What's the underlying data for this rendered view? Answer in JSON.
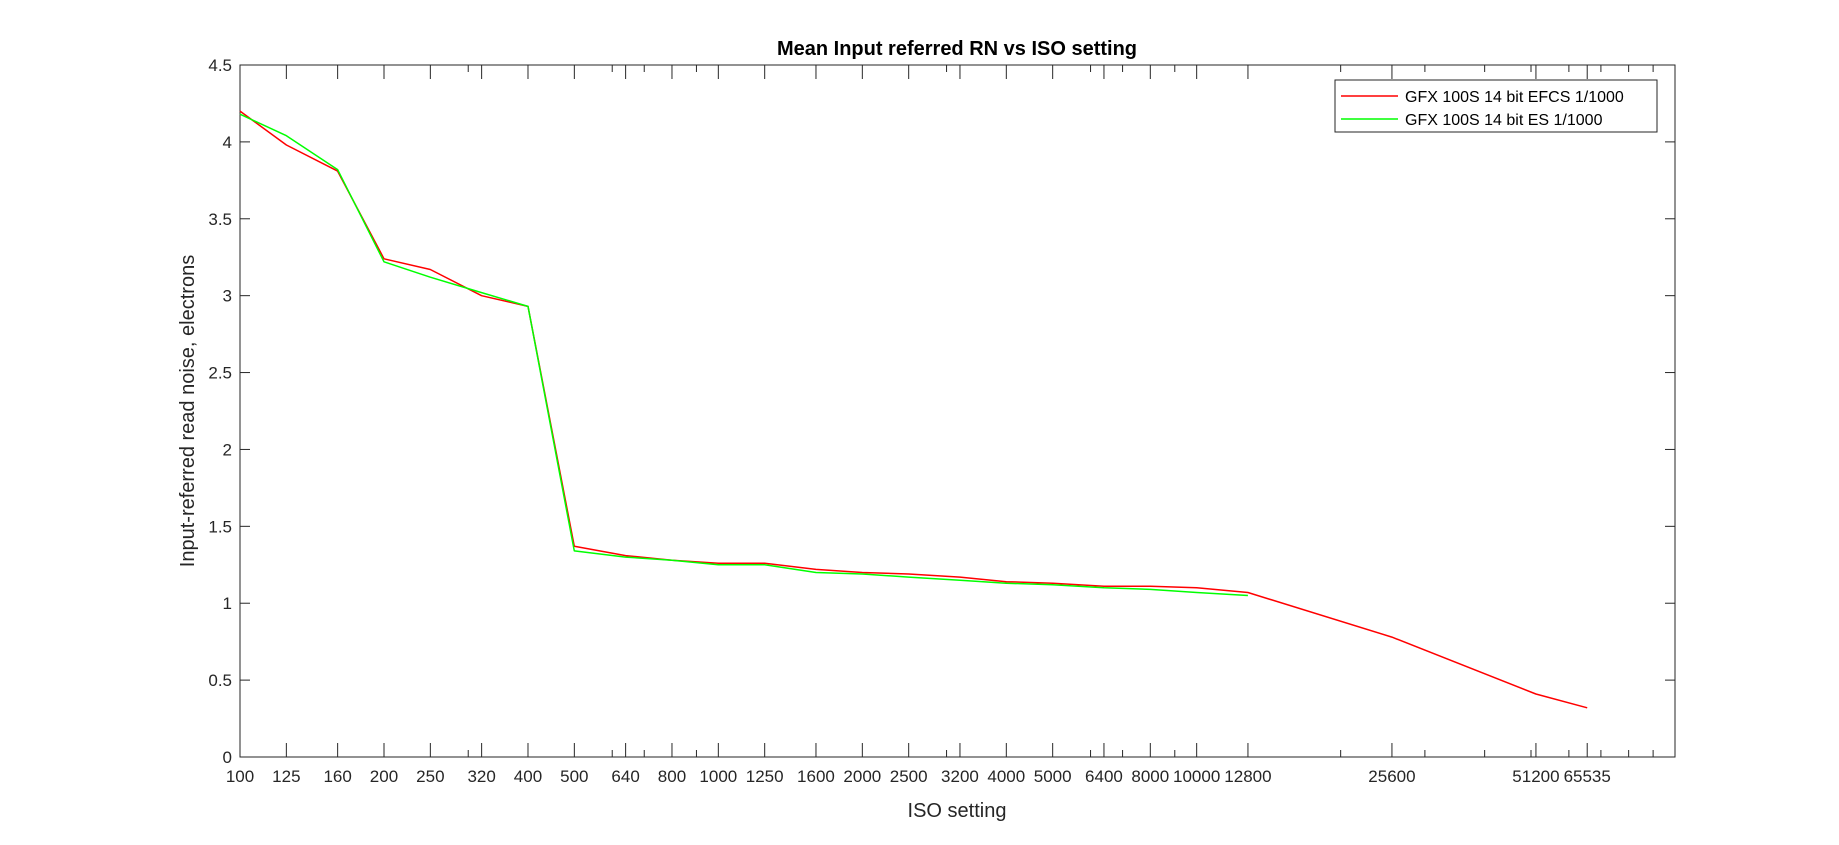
{
  "chart_data": {
    "type": "line",
    "title": "Mean Input referred RN vs ISO setting",
    "xlabel": "ISO setting",
    "ylabel": "Input-referred read noise, electrons",
    "xscale": "log",
    "xlim": [
      100,
      100000
    ],
    "ylim": [
      0,
      4.5
    ],
    "yticks": [
      0,
      0.5,
      1,
      1.5,
      2,
      2.5,
      3,
      3.5,
      4,
      4.5
    ],
    "ytick_labels": [
      "0",
      "0.5",
      "1",
      "1.5",
      "2",
      "2.5",
      "3",
      "3.5",
      "4",
      "4.5"
    ],
    "xticks": [
      100,
      125,
      160,
      200,
      250,
      320,
      400,
      500,
      640,
      800,
      1000,
      1250,
      1600,
      2000,
      2500,
      3200,
      4000,
      5000,
      6400,
      8000,
      10000,
      12800,
      25600,
      51200,
      65535
    ],
    "xtick_labels": [
      "100",
      "125",
      "160",
      "200",
      "250",
      "320",
      "400",
      "500",
      "640",
      "800",
      "1000",
      "1250",
      "1600",
      "2000",
      "2500",
      "3200",
      "4000",
      "5000",
      "6400",
      "8000",
      "10000",
      "12800",
      "25600",
      "51200",
      "65535"
    ],
    "grid": false,
    "legend_position": "top-right",
    "series": [
      {
        "name": "GFX 100S 14 bit EFCS 1/1000",
        "color": "#ff0000",
        "x": [
          100,
          125,
          160,
          200,
          250,
          320,
          400,
          500,
          640,
          800,
          1000,
          1250,
          1600,
          2000,
          2500,
          3200,
          4000,
          5000,
          6400,
          8000,
          10000,
          12800,
          25600,
          51200,
          65535
        ],
        "y": [
          4.2,
          3.98,
          3.81,
          3.24,
          3.17,
          3.0,
          2.93,
          1.37,
          1.31,
          1.28,
          1.26,
          1.26,
          1.22,
          1.2,
          1.19,
          1.17,
          1.14,
          1.13,
          1.11,
          1.11,
          1.1,
          1.07,
          0.78,
          0.41,
          0.32
        ]
      },
      {
        "name": "GFX 100S 14 bit ES 1/1000",
        "color": "#00ff00",
        "x": [
          100,
          125,
          160,
          200,
          250,
          320,
          400,
          500,
          640,
          800,
          1000,
          1250,
          1600,
          2000,
          2500,
          3200,
          4000,
          5000,
          6400,
          8000,
          10000,
          12800
        ],
        "y": [
          4.18,
          4.04,
          3.82,
          3.22,
          3.12,
          3.02,
          2.93,
          1.34,
          1.3,
          1.28,
          1.25,
          1.25,
          1.2,
          1.19,
          1.17,
          1.15,
          1.13,
          1.12,
          1.1,
          1.09,
          1.07,
          1.05
        ]
      }
    ]
  }
}
